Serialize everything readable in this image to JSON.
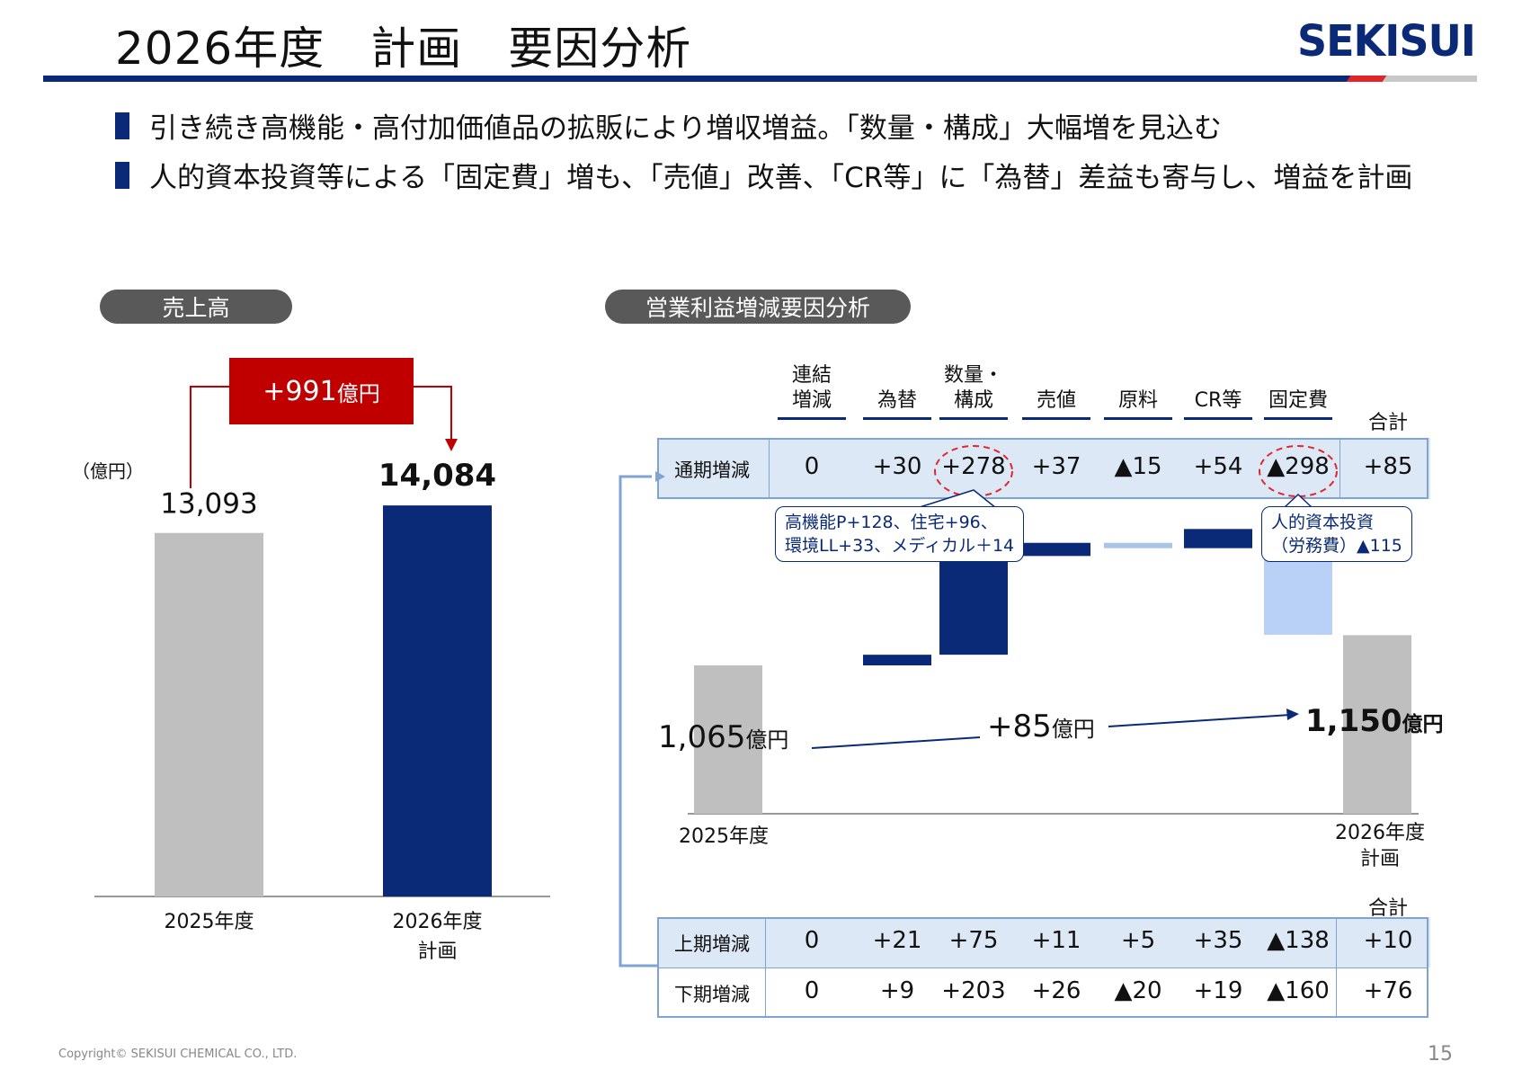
{
  "header": {
    "title": "2026年度　計画　要因分析",
    "logo": "SEKISUI"
  },
  "bullets": [
    "引き続き高機能・高付加価値品の拡販により増収増益。「数量・構成」大幅増を見込む",
    "人的資本投資等による「固定費」増も、「売値」改善、「CR等」に「為替」差益も寄与し、増益を計画"
  ],
  "sales_panel": {
    "pill": "売上高",
    "unit": "（億円）",
    "diff_badge": "+991",
    "diff_unit": "億円"
  },
  "profit_panel": {
    "pill": "営業利益増減要因分析",
    "row_full_label": "通期増減",
    "row_h1_label": "上期増減",
    "row_h2_label": "下期増減",
    "total_label": "合計",
    "callout_left": [
      "高機能P+128、住宅+96、",
      "環境LL+33、メディカル＋14"
    ],
    "callout_right": [
      "人的資本投資",
      "（労務費）▲115"
    ],
    "start_value": "1,065",
    "end_value": "1,150",
    "yen_unit": "億円",
    "diff_value": "+85",
    "start_label": "2025年度",
    "end_label": [
      "2026年度",
      "計画"
    ]
  },
  "chart_data": [
    {
      "type": "bar",
      "categories": [
        "2025年度",
        "2026年度\n計画"
      ],
      "values": [
        13093,
        14084
      ],
      "value_labels": [
        "13,093",
        "14,084"
      ],
      "colors": [
        "#bfbfbf",
        "#0a2a78"
      ],
      "ylim": [
        0,
        14800
      ]
    },
    {
      "type": "table",
      "columns": [
        "連結\n増減",
        "為替",
        "数量・\n構成",
        "売値",
        "原料",
        "CR等",
        "固定費",
        "合計"
      ],
      "rows": [
        {
          "label": "通期増減",
          "values": [
            "0",
            "+30",
            "+278",
            "+37",
            "▲15",
            "+54",
            "▲298",
            "+85"
          ]
        },
        {
          "label": "上期増減",
          "values": [
            "0",
            "+21",
            "+75",
            "+11",
            "+5",
            "+35",
            "▲138",
            "+10"
          ]
        },
        {
          "label": "下期増減",
          "values": [
            "0",
            "+9",
            "+203",
            "+26",
            "▲20",
            "+19",
            "▲160",
            "+76"
          ]
        }
      ]
    },
    {
      "type": "bar",
      "subtype": "waterfall",
      "start": 1065,
      "steps": [
        0,
        30,
        278,
        37,
        -15,
        54,
        -298
      ],
      "end": 1150,
      "colors": {
        "total": "#bfbfbf",
        "increase": "#0a2a78",
        "decrease": "#b9d0f7",
        "small_decrease": "#a9c4e4"
      }
    }
  ],
  "footer": {
    "copyright": "Copyright© SEKISUI CHEMICAL CO., LTD.",
    "page_number": "15"
  }
}
